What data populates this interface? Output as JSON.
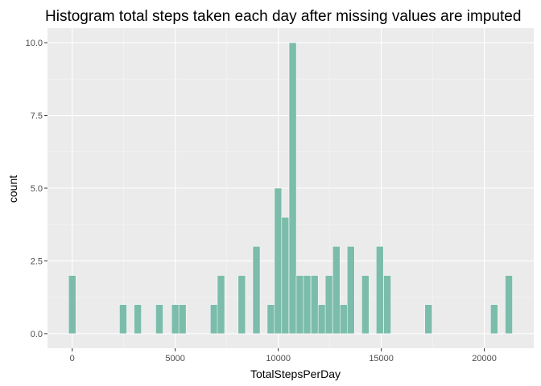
{
  "chart_data": {
    "type": "bar",
    "title": "Histogram total steps taken each day after missing values are imputed",
    "xlabel": "TotalStepsPerDay",
    "ylabel": "count",
    "xlim": [
      -1200,
      22400
    ],
    "ylim": [
      -0.5,
      10.5
    ],
    "bin_width": 353,
    "x_ticks": [
      0,
      5000,
      10000,
      15000,
      20000
    ],
    "x_tick_labels": [
      "0",
      "5000",
      "10000",
      "15000",
      "20000"
    ],
    "y_ticks": [
      0,
      2.5,
      5,
      7.5,
      10
    ],
    "y_tick_labels": [
      "0.0",
      "2.5",
      "5.0",
      "7.5",
      "10.0"
    ],
    "bins": [
      {
        "x": 0,
        "count": 2
      },
      {
        "x": 2470,
        "count": 1
      },
      {
        "x": 3180,
        "count": 1
      },
      {
        "x": 4230,
        "count": 1
      },
      {
        "x": 5000,
        "count": 1
      },
      {
        "x": 5350,
        "count": 1
      },
      {
        "x": 6880,
        "count": 1
      },
      {
        "x": 7220,
        "count": 2
      },
      {
        "x": 8230,
        "count": 2
      },
      {
        "x": 8940,
        "count": 3
      },
      {
        "x": 9640,
        "count": 1
      },
      {
        "x": 9990,
        "count": 5
      },
      {
        "x": 10340,
        "count": 4
      },
      {
        "x": 10700,
        "count": 10
      },
      {
        "x": 11050,
        "count": 2
      },
      {
        "x": 11400,
        "count": 2
      },
      {
        "x": 11760,
        "count": 2
      },
      {
        "x": 12110,
        "count": 1
      },
      {
        "x": 12460,
        "count": 2
      },
      {
        "x": 12820,
        "count": 3
      },
      {
        "x": 13170,
        "count": 1
      },
      {
        "x": 13520,
        "count": 3
      },
      {
        "x": 14230,
        "count": 2
      },
      {
        "x": 14930,
        "count": 3
      },
      {
        "x": 15290,
        "count": 2
      },
      {
        "x": 17290,
        "count": 1
      },
      {
        "x": 20480,
        "count": 1
      },
      {
        "x": 21190,
        "count": 2
      }
    ],
    "grid": true,
    "colors": {
      "bar": "#7bbdaa",
      "panel": "#ebebeb",
      "grid_major": "#ffffff",
      "grid_minor": "#f5f5f5"
    }
  }
}
